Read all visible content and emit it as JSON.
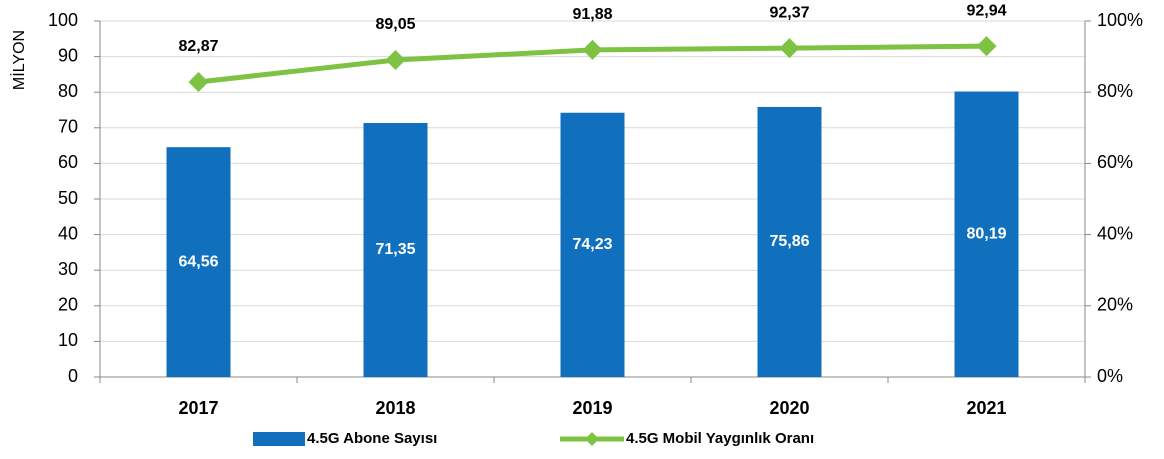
{
  "chart_data": {
    "type": "bar-line",
    "y_label": "MİLYON",
    "categories": [
      "2017",
      "2018",
      "2019",
      "2020",
      "2021"
    ],
    "series": [
      {
        "name": "4.5G Abone Sayısı",
        "type": "bar",
        "color": "#1170bd",
        "values": [
          64.56,
          71.35,
          74.23,
          75.86,
          80.19
        ],
        "value_labels": [
          "64,56",
          "71,35",
          "74,23",
          "75,86",
          "80,19"
        ]
      },
      {
        "name": "4.5G Mobil Yaygınlık Oranı",
        "type": "line",
        "axis": "y2",
        "color": "#7dc242",
        "values": [
          82.87,
          89.05,
          91.88,
          92.37,
          92.94
        ],
        "value_labels": [
          "82,87",
          "89,05",
          "91,88",
          "92,37",
          "92,94"
        ]
      }
    ],
    "ylim": [
      0,
      100
    ],
    "yticks": [
      0,
      10,
      20,
      30,
      40,
      50,
      60,
      70,
      80,
      90,
      100
    ],
    "y2lim": [
      0,
      100
    ],
    "y2ticks": [
      {
        "value": 0,
        "label": "0%"
      },
      {
        "value": 20,
        "label": "20%"
      },
      {
        "value": 40,
        "label": "40%"
      },
      {
        "value": 60,
        "label": "60%"
      },
      {
        "value": 80,
        "label": "80%"
      },
      {
        "value": 100,
        "label": "100%"
      }
    ],
    "grid": true,
    "legend": "bottom"
  }
}
